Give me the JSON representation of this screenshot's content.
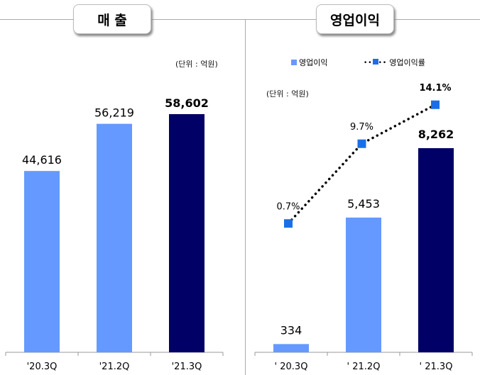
{
  "titles": {
    "left": "매 출",
    "right": "영업이익"
  },
  "units": {
    "left": "(단위 : 억원)",
    "right": "(단위 : 억원)"
  },
  "legend": {
    "bar": "영업이익",
    "line": "영업이익률"
  },
  "colors": {
    "light": "#6699ff",
    "dark": "#000066",
    "marker": "#1a6fe8"
  },
  "chart_data": [
    {
      "type": "bar",
      "title": "매 출",
      "categories": [
        "'20.3Q",
        "'21.2Q",
        "'21.3Q"
      ],
      "values": [
        44616,
        56219,
        58602
      ],
      "labels": [
        "44,616",
        "56,219",
        "58,602"
      ],
      "ylim": [
        0,
        70000
      ]
    },
    {
      "type": "bar+line",
      "title": "영업이익",
      "categories": [
        "' 20.3Q",
        "' 21.2Q",
        "' 21.3Q"
      ],
      "series": [
        {
          "name": "영업이익",
          "values": [
            334,
            5453,
            8262
          ],
          "labels": [
            "334",
            "5,453",
            "8,262"
          ]
        },
        {
          "name": "영업이익률",
          "values": [
            0.7,
            9.7,
            14.1
          ],
          "labels": [
            "0.7%",
            "9.7%",
            "14.1%"
          ]
        }
      ]
    }
  ]
}
